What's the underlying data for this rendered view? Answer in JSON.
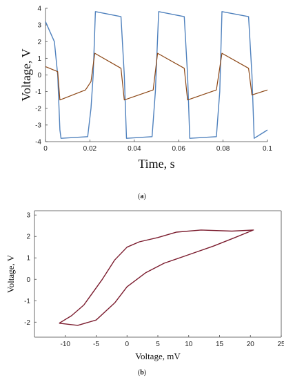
{
  "chart_data": [
    {
      "type": "line",
      "panel_label": "(a)",
      "xlabel": "Time, s",
      "ylabel": "Voltage, V",
      "xlim": [
        0,
        0.1
      ],
      "ylim": [
        -4,
        4
      ],
      "x_ticks": [
        "0",
        "0.02",
        "0.04",
        "0.06",
        "0.08",
        "0.1"
      ],
      "y_ticks": [
        "-4",
        "-3",
        "-2",
        "-1",
        "0",
        "1",
        "2",
        "3",
        "4"
      ],
      "grid": false,
      "series": [
        {
          "color": "#4f81bd",
          "points": [
            [
              0,
              3.2
            ],
            [
              0.004,
              2.0
            ],
            [
              0.0055,
              0.0
            ],
            [
              0.0065,
              -3.3
            ],
            [
              0.007,
              -3.8
            ],
            [
              0.019,
              -3.7
            ],
            [
              0.0205,
              -2.0
            ],
            [
              0.0215,
              0.0
            ],
            [
              0.0225,
              3.8
            ],
            [
              0.034,
              3.5
            ],
            [
              0.0355,
              0.0
            ],
            [
              0.0365,
              -3.8
            ],
            [
              0.048,
              -3.7
            ],
            [
              0.0495,
              -1.0
            ],
            [
              0.051,
              3.8
            ],
            [
              0.0625,
              3.5
            ],
            [
              0.064,
              0.0
            ],
            [
              0.065,
              -3.8
            ],
            [
              0.077,
              -3.7
            ],
            [
              0.0785,
              -1.0
            ],
            [
              0.0795,
              3.8
            ],
            [
              0.0915,
              3.5
            ],
            [
              0.093,
              0.0
            ],
            [
              0.094,
              -3.8
            ],
            [
              0.1,
              -3.3
            ]
          ]
        },
        {
          "color": "#8b4513",
          "points": [
            [
              0,
              0.5
            ],
            [
              0.0055,
              0.2
            ],
            [
              0.0065,
              -1.5
            ],
            [
              0.018,
              -0.9
            ],
            [
              0.0205,
              -0.4
            ],
            [
              0.0222,
              1.3
            ],
            [
              0.034,
              0.4
            ],
            [
              0.0355,
              -1.5
            ],
            [
              0.0485,
              -0.9
            ],
            [
              0.0505,
              1.3
            ],
            [
              0.0625,
              0.4
            ],
            [
              0.064,
              -1.5
            ],
            [
              0.077,
              -0.9
            ],
            [
              0.0795,
              1.3
            ],
            [
              0.0915,
              0.4
            ],
            [
              0.093,
              -1.2
            ],
            [
              0.1,
              -0.9
            ]
          ]
        }
      ]
    },
    {
      "type": "line",
      "panel_label": "(b)",
      "xlabel": "Voltage, mV",
      "ylabel": "Voltage, V",
      "xlim": [
        -15,
        25
      ],
      "ylim": [
        -2.7,
        3.2
      ],
      "x_ticks": [
        "-10",
        "-5",
        "0",
        "5",
        "10",
        "15",
        "20",
        "25"
      ],
      "y_ticks": [
        "-2",
        "-1",
        "0",
        "1",
        "2",
        "3"
      ],
      "grid": false,
      "series": [
        {
          "color": "#7b1c2e",
          "points": [
            [
              -11,
              -2.05
            ],
            [
              -8,
              -2.15
            ],
            [
              -5,
              -1.9
            ],
            [
              -2,
              -1.1
            ],
            [
              0,
              -0.35
            ],
            [
              3,
              0.3
            ],
            [
              6,
              0.75
            ],
            [
              10,
              1.15
            ],
            [
              14,
              1.55
            ],
            [
              17.5,
              1.95
            ],
            [
              20.5,
              2.3
            ],
            [
              17,
              2.25
            ],
            [
              12,
              2.3
            ],
            [
              8,
              2.2
            ],
            [
              5,
              1.95
            ],
            [
              2,
              1.75
            ],
            [
              0,
              1.5
            ],
            [
              -2,
              0.9
            ],
            [
              -4,
              0.0
            ],
            [
              -7,
              -1.2
            ],
            [
              -9,
              -1.7
            ],
            [
              -11,
              -2.05
            ]
          ]
        }
      ]
    }
  ]
}
